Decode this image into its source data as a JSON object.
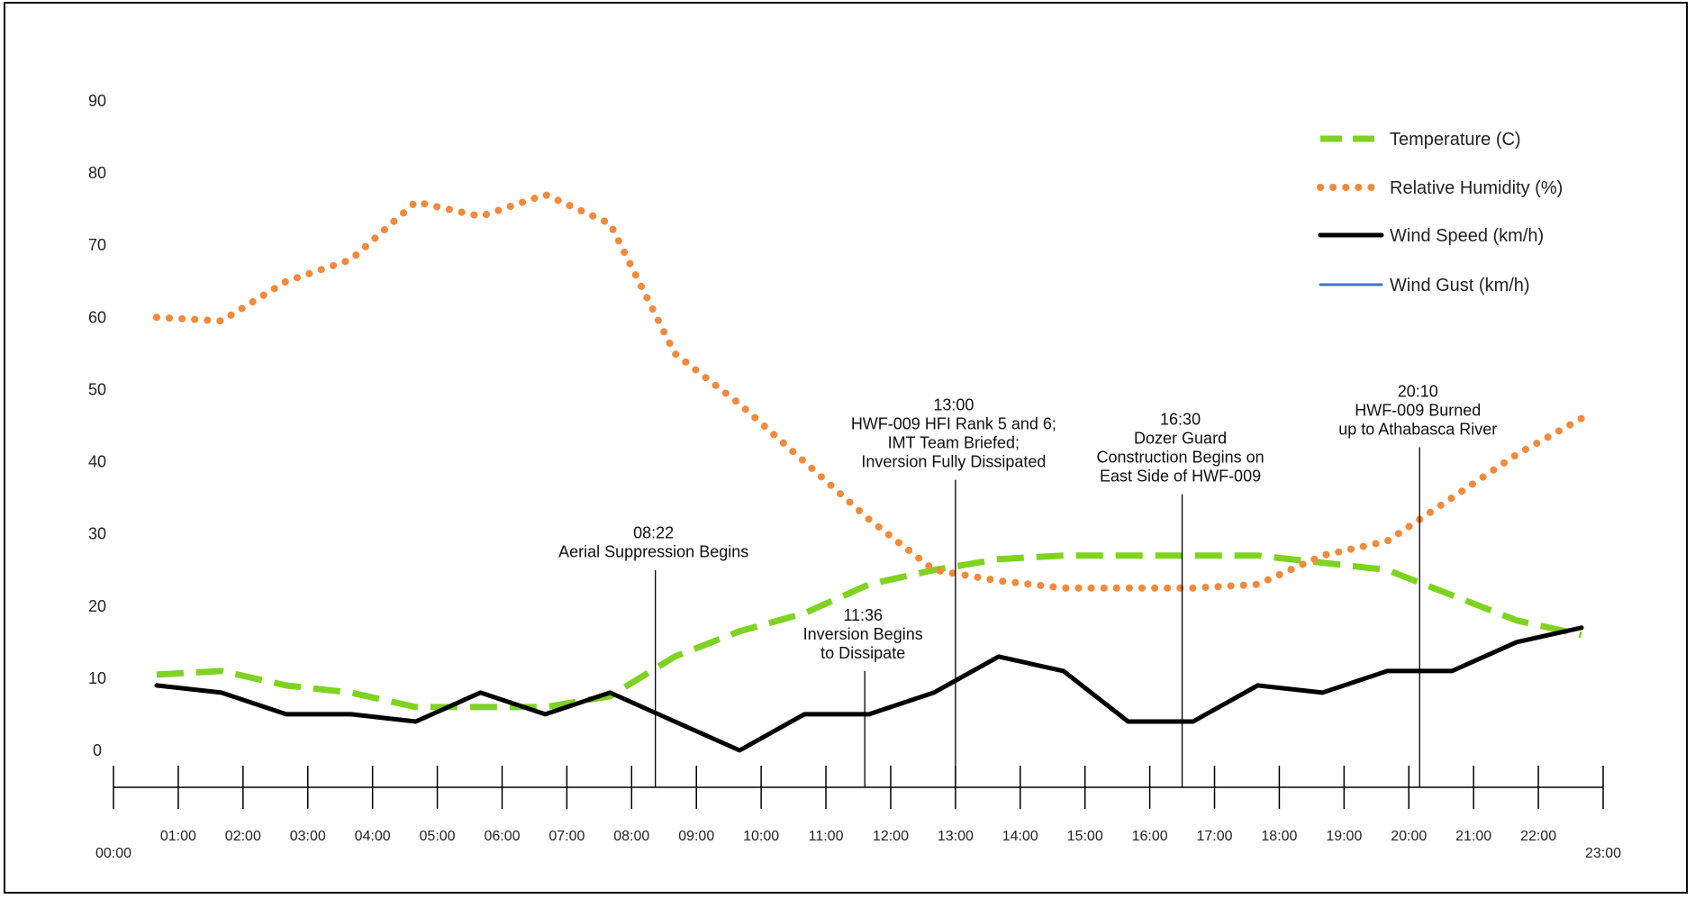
{
  "chart_data": {
    "type": "line",
    "title": "",
    "xlabel": "",
    "ylabel": "",
    "ylim": [
      0,
      90
    ],
    "yticks": [
      "0",
      "10",
      "20",
      "30",
      "40",
      "50",
      "60",
      "70",
      "80",
      "90"
    ],
    "xlim": [
      "00:00",
      "23:00"
    ],
    "xticks": [
      "01:00",
      "02:00",
      "03:00",
      "04:00",
      "05:00",
      "06:00",
      "07:00",
      "08:00",
      "09:00",
      "10:00",
      "11:00",
      "12:00",
      "13:00",
      "14:00",
      "15:00",
      "16:00",
      "17:00",
      "18:00",
      "19:00",
      "20:00",
      "21:00",
      "22:00"
    ],
    "xend_labels": {
      "start": "00:00",
      "end": "23:00"
    },
    "grid": false,
    "legend_position": "top-right",
    "series": [
      {
        "name": "Temperature (C)",
        "color": "#7ed321",
        "style": "dashed",
        "x": [
          "00:40",
          "01:40",
          "02:40",
          "03:40",
          "04:40",
          "05:40",
          "06:40",
          "07:40",
          "08:40",
          "09:40",
          "10:40",
          "11:40",
          "12:40",
          "13:40",
          "14:40",
          "15:40",
          "16:40",
          "17:40",
          "18:40",
          "19:40",
          "20:40",
          "21:40",
          "22:40"
        ],
        "values": [
          10.5,
          11,
          9,
          8,
          6,
          6,
          6,
          7.5,
          13,
          16.5,
          19,
          23,
          25,
          26.5,
          27,
          27,
          27,
          27,
          26,
          25,
          21.5,
          18,
          16
        ]
      },
      {
        "name": "Relative Humidity  (%)",
        "color": "#f08a3c",
        "style": "dotted",
        "x": [
          "00:40",
          "01:40",
          "02:40",
          "03:40",
          "04:40",
          "05:40",
          "06:40",
          "07:40",
          "08:40",
          "09:40",
          "10:40",
          "11:40",
          "12:40",
          "13:40",
          "14:40",
          "15:40",
          "16:40",
          "17:40",
          "18:40",
          "19:40",
          "20:40",
          "21:40",
          "22:40"
        ],
        "values": [
          60,
          59.5,
          65,
          68,
          76,
          74,
          77,
          73,
          55,
          48,
          40,
          32,
          25,
          23.5,
          22.5,
          22.5,
          22.5,
          23,
          27,
          29,
          35,
          41,
          46
        ]
      },
      {
        "name": "Wind Speed (km/h)",
        "color": "#000000",
        "style": "solid",
        "x": [
          "00:40",
          "01:40",
          "02:40",
          "03:40",
          "04:40",
          "05:40",
          "06:40",
          "07:40",
          "08:40",
          "09:40",
          "10:40",
          "11:40",
          "12:40",
          "13:40",
          "14:40",
          "15:40",
          "16:40",
          "17:40",
          "18:40",
          "19:40",
          "20:40",
          "21:40",
          "22:40"
        ],
        "values": [
          9,
          8,
          5,
          5,
          4,
          8,
          5,
          8,
          4,
          0,
          5,
          5,
          8,
          13,
          11,
          4,
          4,
          9,
          8,
          11,
          11,
          15,
          17
        ]
      },
      {
        "name": "Wind Gust (km/h)",
        "color": "#4472c4",
        "style": "solid",
        "x": [],
        "values": []
      }
    ],
    "annotations": [
      {
        "time": "08:22",
        "lines": [
          "08:22",
          "Aerial Suppression Begins"
        ],
        "y_top": 25
      },
      {
        "time": "11:36",
        "lines": [
          "11:36",
          "Inversion Begins",
          "to Dissipate"
        ],
        "y_top": 11
      },
      {
        "time": "13:00",
        "lines": [
          "13:00",
          "HWF-009 HFI Rank 5 and 6;",
          "IMT Team Briefed;",
          "Inversion Fully Dissipated"
        ],
        "y_top": 37.5
      },
      {
        "time": "16:30",
        "lines": [
          "16:30",
          "Dozer Guard",
          "Construction Begins on",
          "East Side of HWF-009"
        ],
        "y_top": 35.5
      },
      {
        "time": "20:10",
        "lines": [
          "20:10",
          "HWF-009 Burned",
          "up to Athabasca River"
        ],
        "y_top": 42
      }
    ]
  }
}
